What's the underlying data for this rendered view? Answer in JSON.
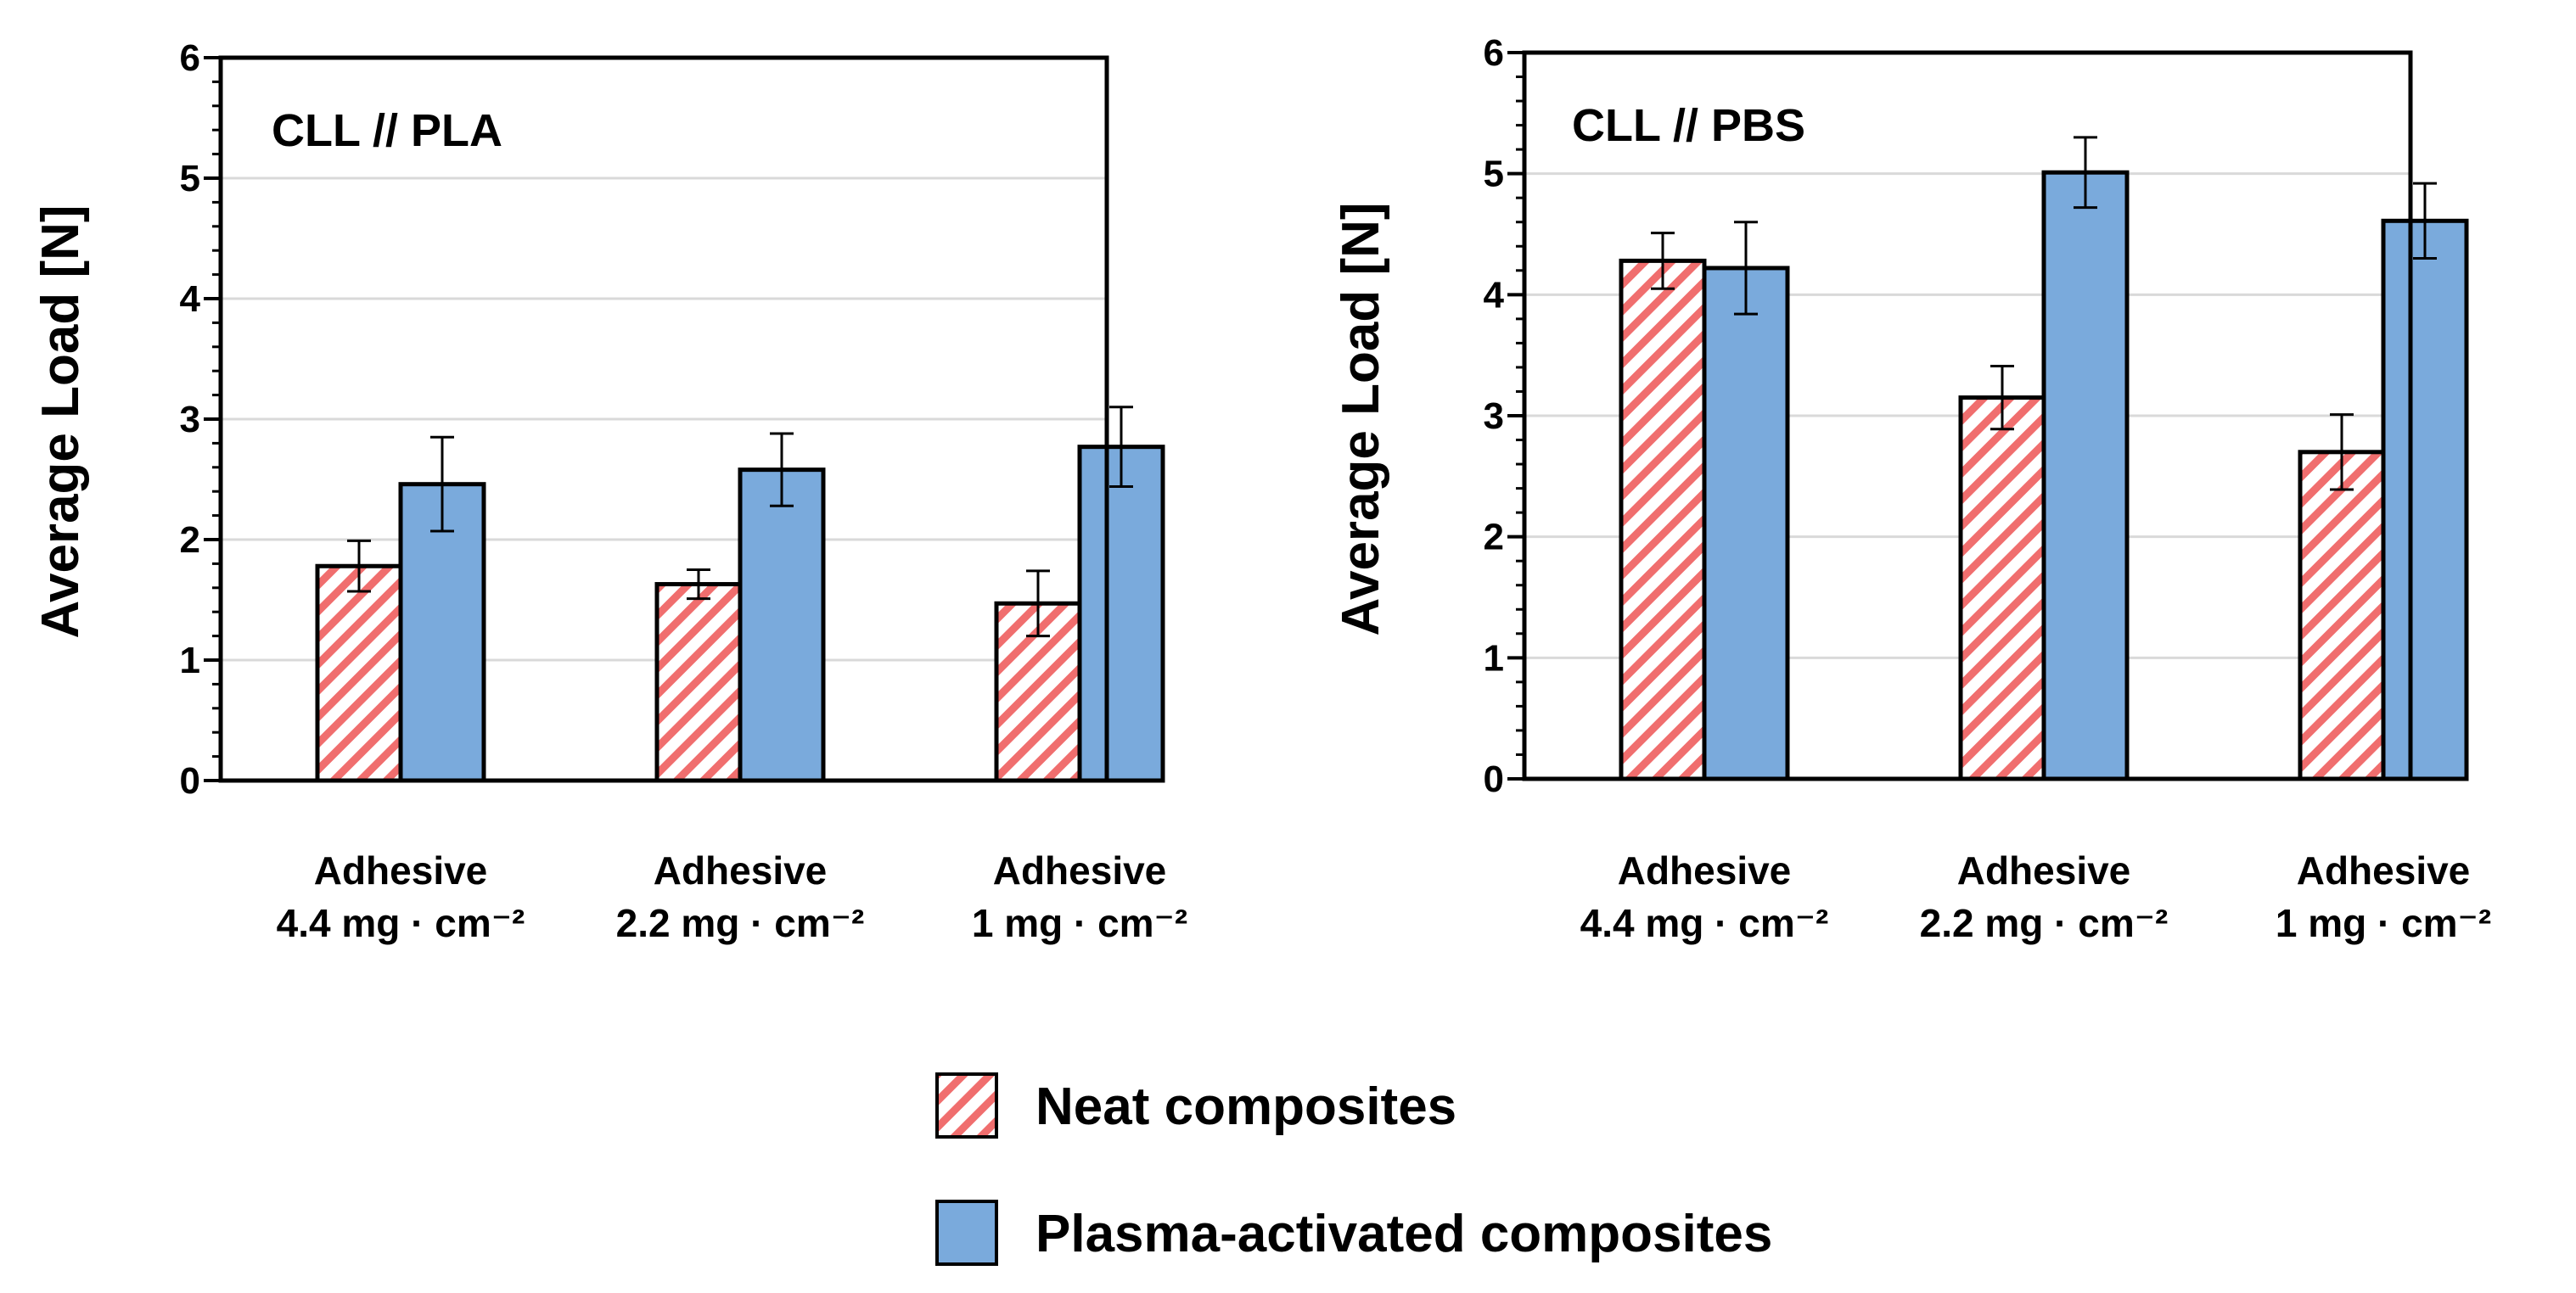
{
  "legend": {
    "items": [
      {
        "label": "Neat composites",
        "style": "hatch",
        "color": "#f06e6e"
      },
      {
        "label": "Plasma-activated composites",
        "style": "solid",
        "color": "#7aaadc"
      }
    ]
  },
  "colors": {
    "neat_hatch": "#f06e6e",
    "plasma_fill": "#7aaadc",
    "bar_stroke": "#000000",
    "grid": "#d9d9d9",
    "axis": "#000000"
  },
  "chart_data": [
    {
      "type": "bar",
      "title": "CLL // PLA",
      "xlabel": "",
      "ylabel": "Average Load [N]",
      "ylim": [
        0,
        6
      ],
      "yticks": [
        0,
        1,
        2,
        3,
        4,
        5,
        6
      ],
      "ytick_labels": [
        "0",
        "1",
        "2",
        "3",
        "4",
        "5",
        "6"
      ],
      "grid": true,
      "categories": [
        {
          "line1": "Adhesive",
          "line2": "4.4 mg · cm⁻²"
        },
        {
          "line1": "Adhesive",
          "line2": "2.2 mg · cm⁻²"
        },
        {
          "line1": "Adhesive",
          "line2": "1 mg · cm⁻²"
        }
      ],
      "series": [
        {
          "name": "Neat composites",
          "values": [
            1.78,
            1.63,
            1.47
          ],
          "errors": [
            0.21,
            0.12,
            0.27
          ]
        },
        {
          "name": "Plasma-activated composites",
          "values": [
            2.46,
            2.58,
            2.77
          ],
          "errors": [
            0.39,
            0.3,
            0.33
          ]
        }
      ]
    },
    {
      "type": "bar",
      "title": "CLL // PBS",
      "xlabel": "",
      "ylabel": "Average Load [N]",
      "ylim": [
        0,
        6
      ],
      "yticks": [
        0,
        1,
        2,
        3,
        4,
        5,
        6
      ],
      "ytick_labels": [
        "0",
        "1",
        "2",
        "3",
        "4",
        "5",
        "6"
      ],
      "grid": true,
      "categories": [
        {
          "line1": "Adhesive",
          "line2": "4.4 mg · cm⁻²"
        },
        {
          "line1": "Adhesive",
          "line2": "2.2 mg · cm⁻²"
        },
        {
          "line1": "Adhesive",
          "line2": "1 mg · cm⁻²"
        }
      ],
      "series": [
        {
          "name": "Neat composites",
          "values": [
            4.28,
            3.15,
            2.7
          ],
          "errors": [
            0.23,
            0.26,
            0.31
          ]
        },
        {
          "name": "Plasma-activated composites",
          "values": [
            4.22,
            5.01,
            4.61
          ],
          "errors": [
            0.38,
            0.29,
            0.31
          ]
        }
      ]
    }
  ]
}
